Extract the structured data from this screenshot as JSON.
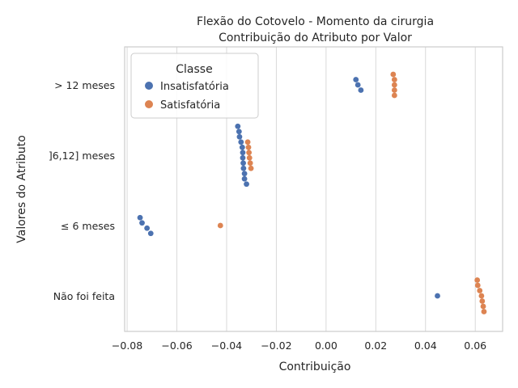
{
  "chart_data": {
    "type": "scatter",
    "title": [
      "Flexão do Cotovelo - Momento da cirurgia",
      "Contribuição do Atributo por Valor"
    ],
    "xlabel": "Contribuição",
    "ylabel": "Valores do Atributo",
    "xlim": [
      -0.081,
      0.071
    ],
    "xticks": [
      "−0.08",
      "−0.06",
      "−0.04",
      "−0.02",
      "0.00",
      "0.02",
      "0.04",
      "0.06"
    ],
    "xtick_values": [
      -0.08,
      -0.06,
      -0.04,
      -0.02,
      0.0,
      0.02,
      0.04,
      0.06
    ],
    "categories": [
      "> 12 meses",
      "]6,12] meses",
      "≤ 6 meses",
      "Não foi feita"
    ],
    "grid": true,
    "legend": {
      "title": "Classe",
      "placement": "upper-left",
      "entries": [
        "Insatisfatória",
        "Satisfatória"
      ]
    },
    "series": [
      {
        "name": "Insatisfatória",
        "color": "#4c72b0",
        "points": [
          {
            "category": "> 12 meses",
            "x": 0.0128
          },
          {
            "category": "> 12 meses",
            "x": 0.012
          },
          {
            "category": "> 12 meses",
            "x": 0.014
          },
          {
            "category": "]6,12] meses",
            "x": -0.0328
          },
          {
            "category": "]6,12] meses",
            "x": -0.0332
          },
          {
            "category": "]6,12] meses",
            "x": -0.0335
          },
          {
            "category": "]6,12] meses",
            "x": -0.0337
          },
          {
            "category": "]6,12] meses",
            "x": -0.035
          },
          {
            "category": "]6,12] meses",
            "x": -0.0355
          },
          {
            "category": "]6,12] meses",
            "x": -0.0333
          },
          {
            "category": "]6,12] meses",
            "x": -0.032
          },
          {
            "category": "]6,12] meses",
            "x": -0.0348
          },
          {
            "category": "]6,12] meses",
            "x": -0.0342
          },
          {
            "category": "]6,12] meses",
            "x": -0.0335
          },
          {
            "category": "]6,12] meses",
            "x": -0.0328
          },
          {
            "category": "≤ 6 meses",
            "x": -0.074
          },
          {
            "category": "≤ 6 meses",
            "x": -0.0705
          },
          {
            "category": "≤ 6 meses",
            "x": -0.0748
          },
          {
            "category": "≤ 6 meses",
            "x": -0.072
          },
          {
            "category": "Não foi feita",
            "x": 0.0448
          }
        ]
      },
      {
        "name": "Satisfatória",
        "color": "#dd8452",
        "points": [
          {
            "category": "> 12 meses",
            "x": 0.0275
          },
          {
            "category": "> 12 meses",
            "x": 0.0275
          },
          {
            "category": "> 12 meses",
            "x": 0.027
          },
          {
            "category": "> 12 meses",
            "x": 0.0275
          },
          {
            "category": "> 12 meses",
            "x": 0.0275
          },
          {
            "category": "]6,12] meses",
            "x": -0.0302
          },
          {
            "category": "]6,12] meses",
            "x": -0.0308
          },
          {
            "category": "]6,12] meses",
            "x": -0.0315
          },
          {
            "category": "]6,12] meses",
            "x": -0.031
          },
          {
            "category": "]6,12] meses",
            "x": -0.0312
          },
          {
            "category": "]6,12] meses",
            "x": -0.0305
          },
          {
            "category": "≤ 6 meses",
            "x": -0.0425
          },
          {
            "category": "Não foi feita",
            "x": 0.0635
          },
          {
            "category": "Não foi feita",
            "x": 0.0625
          },
          {
            "category": "Não foi feita",
            "x": 0.061
          },
          {
            "category": "Não foi feita",
            "x": 0.0608
          },
          {
            "category": "Não foi feita",
            "x": 0.0628
          },
          {
            "category": "Não foi feita",
            "x": 0.0618
          },
          {
            "category": "Não foi feita",
            "x": 0.0632
          }
        ]
      }
    ]
  }
}
